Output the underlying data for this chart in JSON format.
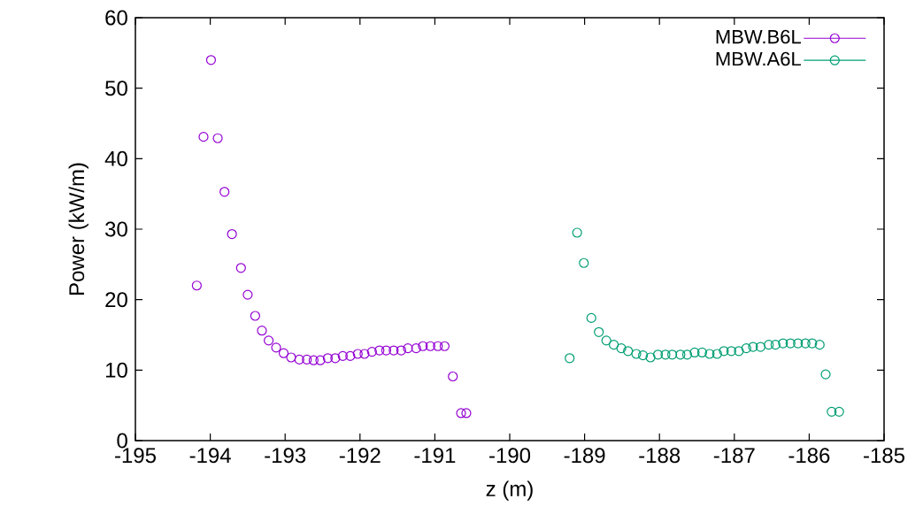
{
  "chart_data": {
    "type": "scatter",
    "xlabel": "z (m)",
    "ylabel": "Power (kW/m)",
    "xlim": [
      -195,
      -185
    ],
    "xticks": [
      -195,
      -194,
      -193,
      -192,
      -191,
      -190,
      -189,
      -188,
      -187,
      -186,
      -185
    ],
    "ylim": [
      0,
      60
    ],
    "yticks": [
      0,
      10,
      20,
      30,
      40,
      50,
      60
    ],
    "legend": "top right",
    "marker": "circle",
    "series": [
      {
        "name": "MBW.B6L",
        "color": "#9400d3",
        "x": [
          -194.18,
          -194.09,
          -193.99,
          -193.9,
          -193.81,
          -193.71,
          -193.59,
          -193.5,
          -193.4,
          -193.31,
          -193.22,
          -193.12,
          -193.02,
          -192.92,
          -192.81,
          -192.71,
          -192.62,
          -192.53,
          -192.43,
          -192.33,
          -192.23,
          -192.13,
          -192.03,
          -191.94,
          -191.84,
          -191.74,
          -191.65,
          -191.55,
          -191.45,
          -191.36,
          -191.25,
          -191.16,
          -191.06,
          -190.96,
          -190.87,
          -190.76,
          -190.65,
          -190.58
        ],
        "values": [
          22.0,
          43.1,
          54.0,
          42.9,
          35.3,
          29.3,
          24.5,
          20.7,
          17.7,
          15.6,
          14.2,
          13.2,
          12.4,
          11.8,
          11.5,
          11.5,
          11.4,
          11.4,
          11.7,
          11.7,
          12.0,
          12.0,
          12.3,
          12.3,
          12.6,
          12.8,
          12.8,
          12.8,
          12.8,
          13.1,
          13.1,
          13.4,
          13.4,
          13.4,
          13.4,
          9.1,
          3.9,
          3.9
        ]
      },
      {
        "name": "MBW.A6L",
        "color": "#009e73",
        "x": [
          -189.2,
          -189.1,
          -189.01,
          -188.91,
          -188.81,
          -188.71,
          -188.61,
          -188.51,
          -188.42,
          -188.31,
          -188.22,
          -188.12,
          -188.02,
          -187.92,
          -187.83,
          -187.72,
          -187.63,
          -187.53,
          -187.43,
          -187.33,
          -187.23,
          -187.14,
          -187.04,
          -186.94,
          -186.84,
          -186.75,
          -186.65,
          -186.54,
          -186.45,
          -186.35,
          -186.25,
          -186.15,
          -186.05,
          -185.96,
          -185.86,
          -185.78,
          -185.7,
          -185.6
        ],
        "values": [
          11.7,
          29.5,
          25.2,
          17.4,
          15.4,
          14.2,
          13.6,
          13.1,
          12.7,
          12.3,
          12.1,
          11.8,
          12.2,
          12.2,
          12.2,
          12.2,
          12.2,
          12.5,
          12.5,
          12.3,
          12.3,
          12.7,
          12.7,
          12.7,
          13.1,
          13.3,
          13.3,
          13.6,
          13.6,
          13.8,
          13.8,
          13.8,
          13.8,
          13.8,
          13.6,
          9.4,
          4.1,
          4.1
        ]
      }
    ]
  }
}
